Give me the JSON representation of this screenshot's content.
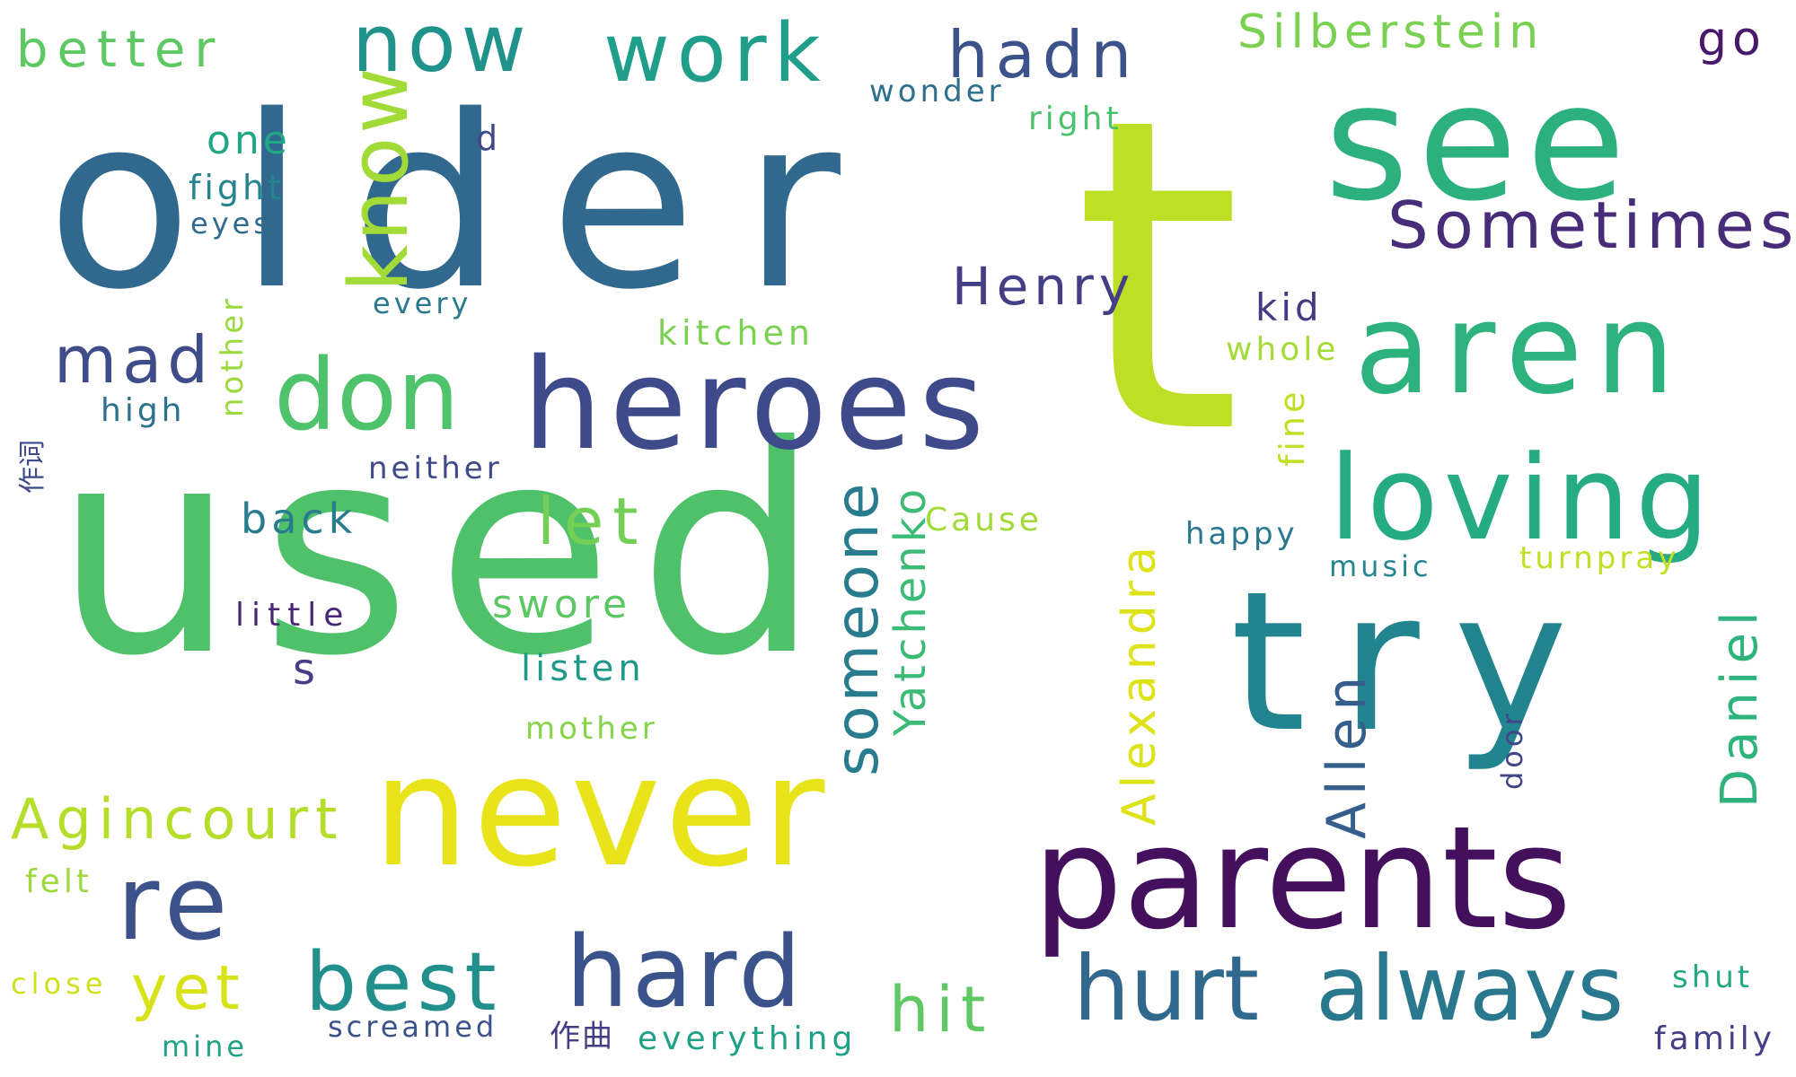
{
  "words": [
    {
      "text": "older",
      "color": "#31688e"
    },
    {
      "text": "used",
      "color": "#4fc16b"
    },
    {
      "text": "t",
      "color": "#bddf26"
    },
    {
      "text": "see",
      "color": "#2cb17e"
    },
    {
      "text": "try",
      "color": "#21848e"
    },
    {
      "text": "never",
      "color": "#e8e419"
    },
    {
      "text": "parents",
      "color": "#440f5d"
    },
    {
      "text": "heroes",
      "color": "#3e4a89"
    },
    {
      "text": "aren",
      "color": "#2db27d"
    },
    {
      "text": "loving",
      "color": "#25ac82"
    },
    {
      "text": "don",
      "color": "#4ec36b"
    },
    {
      "text": "hard",
      "color": "#3a538b"
    },
    {
      "text": "hurt",
      "color": "#31688e"
    },
    {
      "text": "always",
      "color": "#2a788e"
    },
    {
      "text": "best",
      "color": "#21908d"
    },
    {
      "text": "re",
      "color": "#3b528b"
    },
    {
      "text": "now",
      "color": "#20928c"
    },
    {
      "text": "work",
      "color": "#1f9e89"
    },
    {
      "text": "know",
      "color": "#a2da37"
    },
    {
      "text": "Sometimes",
      "color": "#472c7a"
    },
    {
      "text": "hadn",
      "color": "#3b528b"
    },
    {
      "text": "Henry",
      "color": "#433e85"
    },
    {
      "text": "mad",
      "color": "#3e4c8a"
    },
    {
      "text": "better",
      "color": "#5ec962"
    },
    {
      "text": "someone",
      "color": "#297b8e"
    },
    {
      "text": "Yatchenko",
      "color": "#3bbb75"
    },
    {
      "text": "Agincourt",
      "color": "#b5de2b"
    },
    {
      "text": "Silberstein",
      "color": "#7ad151"
    },
    {
      "text": "yet",
      "color": "#d8e219"
    },
    {
      "text": "hit",
      "color": "#5ec962"
    },
    {
      "text": "let",
      "color": "#74d055"
    },
    {
      "text": "Alexandra",
      "color": "#dde318"
    },
    {
      "text": "Allen",
      "color": "#355e8d"
    },
    {
      "text": "Daniel",
      "color": "#2eb37c"
    },
    {
      "text": "one",
      "color": "#22a785"
    },
    {
      "text": "fight",
      "color": "#25848e"
    },
    {
      "text": "eyes",
      "color": "#306a8e"
    },
    {
      "text": "go",
      "color": "#48186a"
    },
    {
      "text": "d",
      "color": "#3e4a89"
    },
    {
      "text": "wonder",
      "color": "#2e6f8e"
    },
    {
      "text": "right",
      "color": "#4ac16d"
    },
    {
      "text": "every",
      "color": "#2a788e"
    },
    {
      "text": "kitchen",
      "color": "#7ad151"
    },
    {
      "text": "kid",
      "color": "#443983"
    },
    {
      "text": "whole",
      "color": "#a5db36"
    },
    {
      "text": "nother",
      "color": "#9bd93c"
    },
    {
      "text": "high",
      "color": "#2c718e"
    },
    {
      "text": "fine",
      "color": "#c0df25"
    },
    {
      "text": "neither",
      "color": "#3e4a89"
    },
    {
      "text": "back",
      "color": "#287c8e"
    },
    {
      "text": "Cause",
      "color": "#a2da37"
    },
    {
      "text": "happy",
      "color": "#2a788e"
    },
    {
      "text": "music",
      "color": "#24868e"
    },
    {
      "text": "turnpray",
      "color": "#c2df23"
    },
    {
      "text": "little",
      "color": "#482677"
    },
    {
      "text": "swore",
      "color": "#5cc863"
    },
    {
      "text": "s",
      "color": "#433e85"
    },
    {
      "text": "listen",
      "color": "#1f9a8a"
    },
    {
      "text": "mother",
      "color": "#86d549"
    },
    {
      "text": "door",
      "color": "#3f4788"
    },
    {
      "text": "felt",
      "color": "#9bd93c"
    },
    {
      "text": "close",
      "color": "#d0e11c"
    },
    {
      "text": "mine",
      "color": "#20a386"
    },
    {
      "text": "screamed",
      "color": "#3b528b"
    },
    {
      "text": "作曲",
      "color": "#433e85"
    },
    {
      "text": "everything",
      "color": "#1fa187"
    },
    {
      "text": "shut",
      "color": "#22a785"
    },
    {
      "text": "family",
      "color": "#433e85"
    },
    {
      "text": "作词",
      "color": "#3e4a89"
    }
  ]
}
